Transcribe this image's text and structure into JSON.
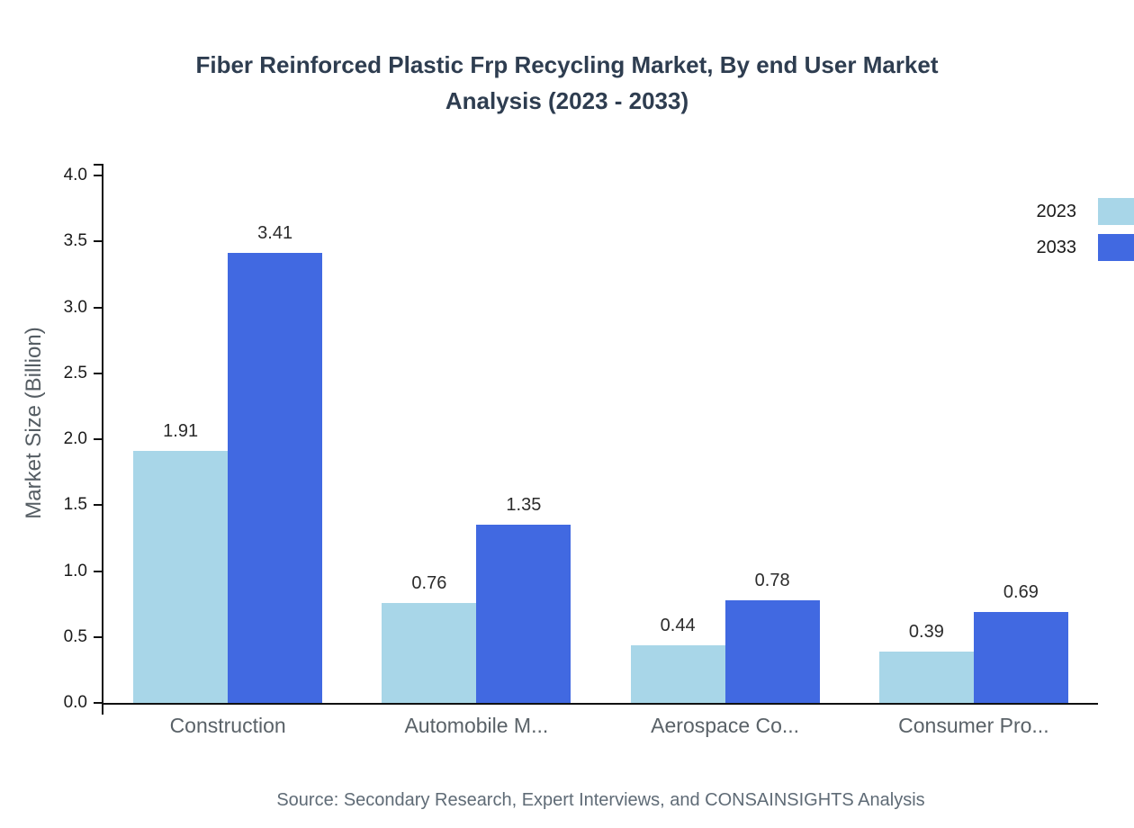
{
  "title": "Fiber Reinforced Plastic Frp Recycling Market, By end User Market Analysis (2023 - 2033)",
  "source_note": "Source: Secondary Research, Expert Interviews, and CONSAINSIGHTS Analysis",
  "colors": {
    "series_2023": "#a8d6e8",
    "series_2033": "#4169e1",
    "title_text": "#2e3d50",
    "axis": "#111111",
    "category_text": "#5a6268",
    "source_text": "#5f6b76"
  },
  "chart_data": {
    "type": "bar",
    "title": "Fiber Reinforced Plastic Frp Recycling Market, By end User Market Analysis (2023 - 2033)",
    "categories": [
      "Construction",
      "Automobile M...",
      "Aerospace Co...",
      "Consumer Pro..."
    ],
    "series": [
      {
        "name": "2023",
        "color": "#a8d6e8",
        "values": [
          1.91,
          0.76,
          0.44,
          0.39
        ]
      },
      {
        "name": "2033",
        "color": "#4169e1",
        "values": [
          3.41,
          1.35,
          0.78,
          0.69
        ]
      }
    ],
    "xlabel": "",
    "ylabel": "Market Size (Billion)",
    "ylim": [
      0,
      4.0
    ],
    "yticks": [
      0.0,
      0.5,
      1.0,
      1.5,
      2.0,
      2.5,
      3.0,
      3.5,
      4.0
    ],
    "grid": false,
    "legend_position": "top-right",
    "value_labels": true
  }
}
